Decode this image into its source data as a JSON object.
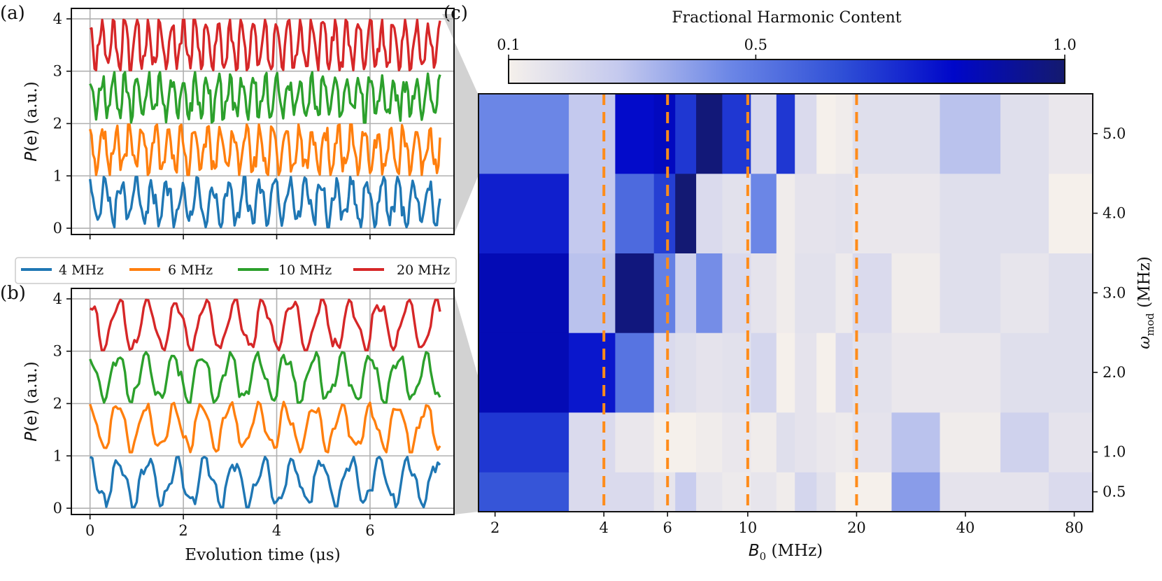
{
  "panels": {
    "a": {
      "letter": "(a)"
    },
    "b": {
      "letter": "(b)"
    },
    "c": {
      "letter": "(c)"
    }
  },
  "legend": [
    {
      "label": "4 MHz",
      "color": "#1f77b4"
    },
    {
      "label": "6 MHz",
      "color": "#ff7f0e"
    },
    {
      "label": "10 MHz",
      "color": "#2ca02c"
    },
    {
      "label": "20 MHz",
      "color": "#d62728"
    }
  ],
  "chart_data": [
    {
      "id": "a",
      "type": "line",
      "title": "",
      "xlabel": "",
      "ylabel": "P(e) (a.u.)",
      "xlim": [
        -0.4,
        7.8
      ],
      "ylim": [
        -0.12,
        4.2
      ],
      "xticks": [
        0,
        2,
        4,
        6
      ],
      "xtick_labels": [
        "",
        "",
        "",
        ""
      ],
      "yticks": [
        0,
        1,
        2,
        3,
        4
      ],
      "ytick_labels": [
        "0",
        "1",
        "2",
        "3",
        "4"
      ],
      "grid": true,
      "t_range": [
        0,
        7.5
      ],
      "series": [
        {
          "name": "4 MHz",
          "color": "#1f77b4",
          "offset": 0,
          "period_us": 0.33,
          "amplitude": 0.38,
          "mid": 0.5
        },
        {
          "name": "6 MHz",
          "color": "#ff7f0e",
          "offset": 1,
          "period_us": 0.28,
          "amplitude": 0.38,
          "mid": 0.5
        },
        {
          "name": "10 MHz",
          "color": "#2ca02c",
          "offset": 2,
          "period_us": 0.25,
          "amplitude": 0.35,
          "mid": 0.5
        },
        {
          "name": "20 MHz",
          "color": "#d62728",
          "offset": 3,
          "period_us": 0.25,
          "amplitude": 0.45,
          "mid": 0.5
        }
      ]
    },
    {
      "id": "b",
      "type": "line",
      "title": "",
      "xlabel": "Evolution time (μs)",
      "ylabel": "P(e) (a.u.)",
      "xlim": [
        -0.4,
        7.8
      ],
      "ylim": [
        -0.12,
        4.2
      ],
      "xticks": [
        0,
        2,
        4,
        6
      ],
      "xtick_labels": [
        "0",
        "2",
        "4",
        "6"
      ],
      "yticks": [
        0,
        1,
        2,
        3,
        4
      ],
      "ytick_labels": [
        "0",
        "1",
        "2",
        "3",
        "4"
      ],
      "grid": true,
      "t_range": [
        0,
        7.5
      ],
      "series": [
        {
          "name": "4 MHz",
          "color": "#1f77b4",
          "offset": 0,
          "period_us": 0.62,
          "amplitude": 0.4,
          "mid": 0.5
        },
        {
          "name": "6 MHz",
          "color": "#ff7f0e",
          "offset": 1,
          "period_us": 0.6,
          "amplitude": 0.4,
          "mid": 0.55
        },
        {
          "name": "10 MHz",
          "color": "#2ca02c",
          "offset": 2,
          "period_us": 0.6,
          "amplitude": 0.42,
          "mid": 0.5
        },
        {
          "name": "20 MHz",
          "color": "#d62728",
          "offset": 3,
          "period_us": 0.62,
          "amplitude": 0.45,
          "mid": 0.5
        }
      ]
    },
    {
      "id": "c",
      "type": "heatmap",
      "title": "",
      "xlabel": "B0 (MHz)",
      "ylabel": "ω_mod (MHz)",
      "x_scale": "log",
      "xlim": [
        1.8,
        90
      ],
      "ylim": [
        0.25,
        5.5
      ],
      "xticks": [
        2,
        4,
        6,
        10,
        20,
        40,
        80
      ],
      "xtick_labels": [
        "2",
        "4",
        "6",
        "10",
        "20",
        "40",
        "80"
      ],
      "yticks": [
        0.5,
        1.0,
        2.0,
        3.0,
        4.0,
        5.0
      ],
      "ytick_labels": [
        "0.5",
        "1.0",
        "2.0",
        "3.0",
        "4.0",
        "5.0"
      ],
      "x_edges": [
        1.8,
        3.2,
        4.3,
        5.5,
        6.3,
        7.2,
        8.5,
        10.2,
        12.0,
        13.5,
        15.5,
        17.5,
        19.5,
        25.0,
        34.0,
        50.0,
        68.0,
        90.0
      ],
      "y_edges": [
        0.25,
        0.75,
        1.5,
        2.5,
        3.5,
        4.5,
        5.5
      ],
      "values": [
        [
          0.62,
          0.2,
          0.2,
          0.15,
          0.26,
          0.15,
          0.13,
          0.15,
          0.12,
          0.22,
          0.17,
          0.1,
          0.1,
          0.4,
          0.16,
          0.16,
          0.2
        ],
        [
          0.7,
          0.2,
          0.14,
          0.08,
          0.1,
          0.12,
          0.14,
          0.12,
          0.18,
          0.16,
          0.14,
          0.13,
          0.16,
          0.3,
          0.12,
          0.24,
          0.16
        ],
        [
          0.86,
          0.78,
          0.52,
          0.2,
          0.18,
          0.16,
          0.17,
          0.22,
          0.1,
          0.16,
          0.08,
          0.2,
          0.17,
          0.14,
          0.14,
          0.18,
          0.18
        ],
        [
          0.86,
          0.3,
          0.97,
          0.48,
          0.24,
          0.44,
          0.2,
          0.16,
          0.12,
          0.17,
          0.17,
          0.13,
          0.2,
          0.12,
          0.18,
          0.15,
          0.18
        ],
        [
          0.76,
          0.28,
          0.55,
          0.68,
          0.99,
          0.2,
          0.17,
          0.46,
          0.12,
          0.16,
          0.16,
          0.17,
          0.14,
          0.14,
          0.18,
          0.18,
          0.08
        ],
        [
          0.46,
          0.28,
          0.81,
          0.84,
          0.7,
          0.98,
          0.7,
          0.21,
          0.7,
          0.2,
          0.08,
          0.12,
          0.18,
          0.18,
          0.3,
          0.18,
          0.14
        ]
      ],
      "vlines": {
        "x": [
          4,
          6,
          10,
          20
        ],
        "color": "#ff8c1a",
        "style": "dashed"
      },
      "colorbar": {
        "title": "Fractional Harmonic Content",
        "range": [
          0.1,
          1.0
        ],
        "ticks": [
          0.1,
          0.5,
          1.0
        ],
        "tick_labels": [
          "0.1",
          "0.5",
          "1.0"
        ],
        "placement": "top",
        "stops": [
          "#f5f0eb",
          "#c4c9ee",
          "#6b86e6",
          "#2f4fd6",
          "#0007c9",
          "#141a6e"
        ]
      }
    }
  ]
}
